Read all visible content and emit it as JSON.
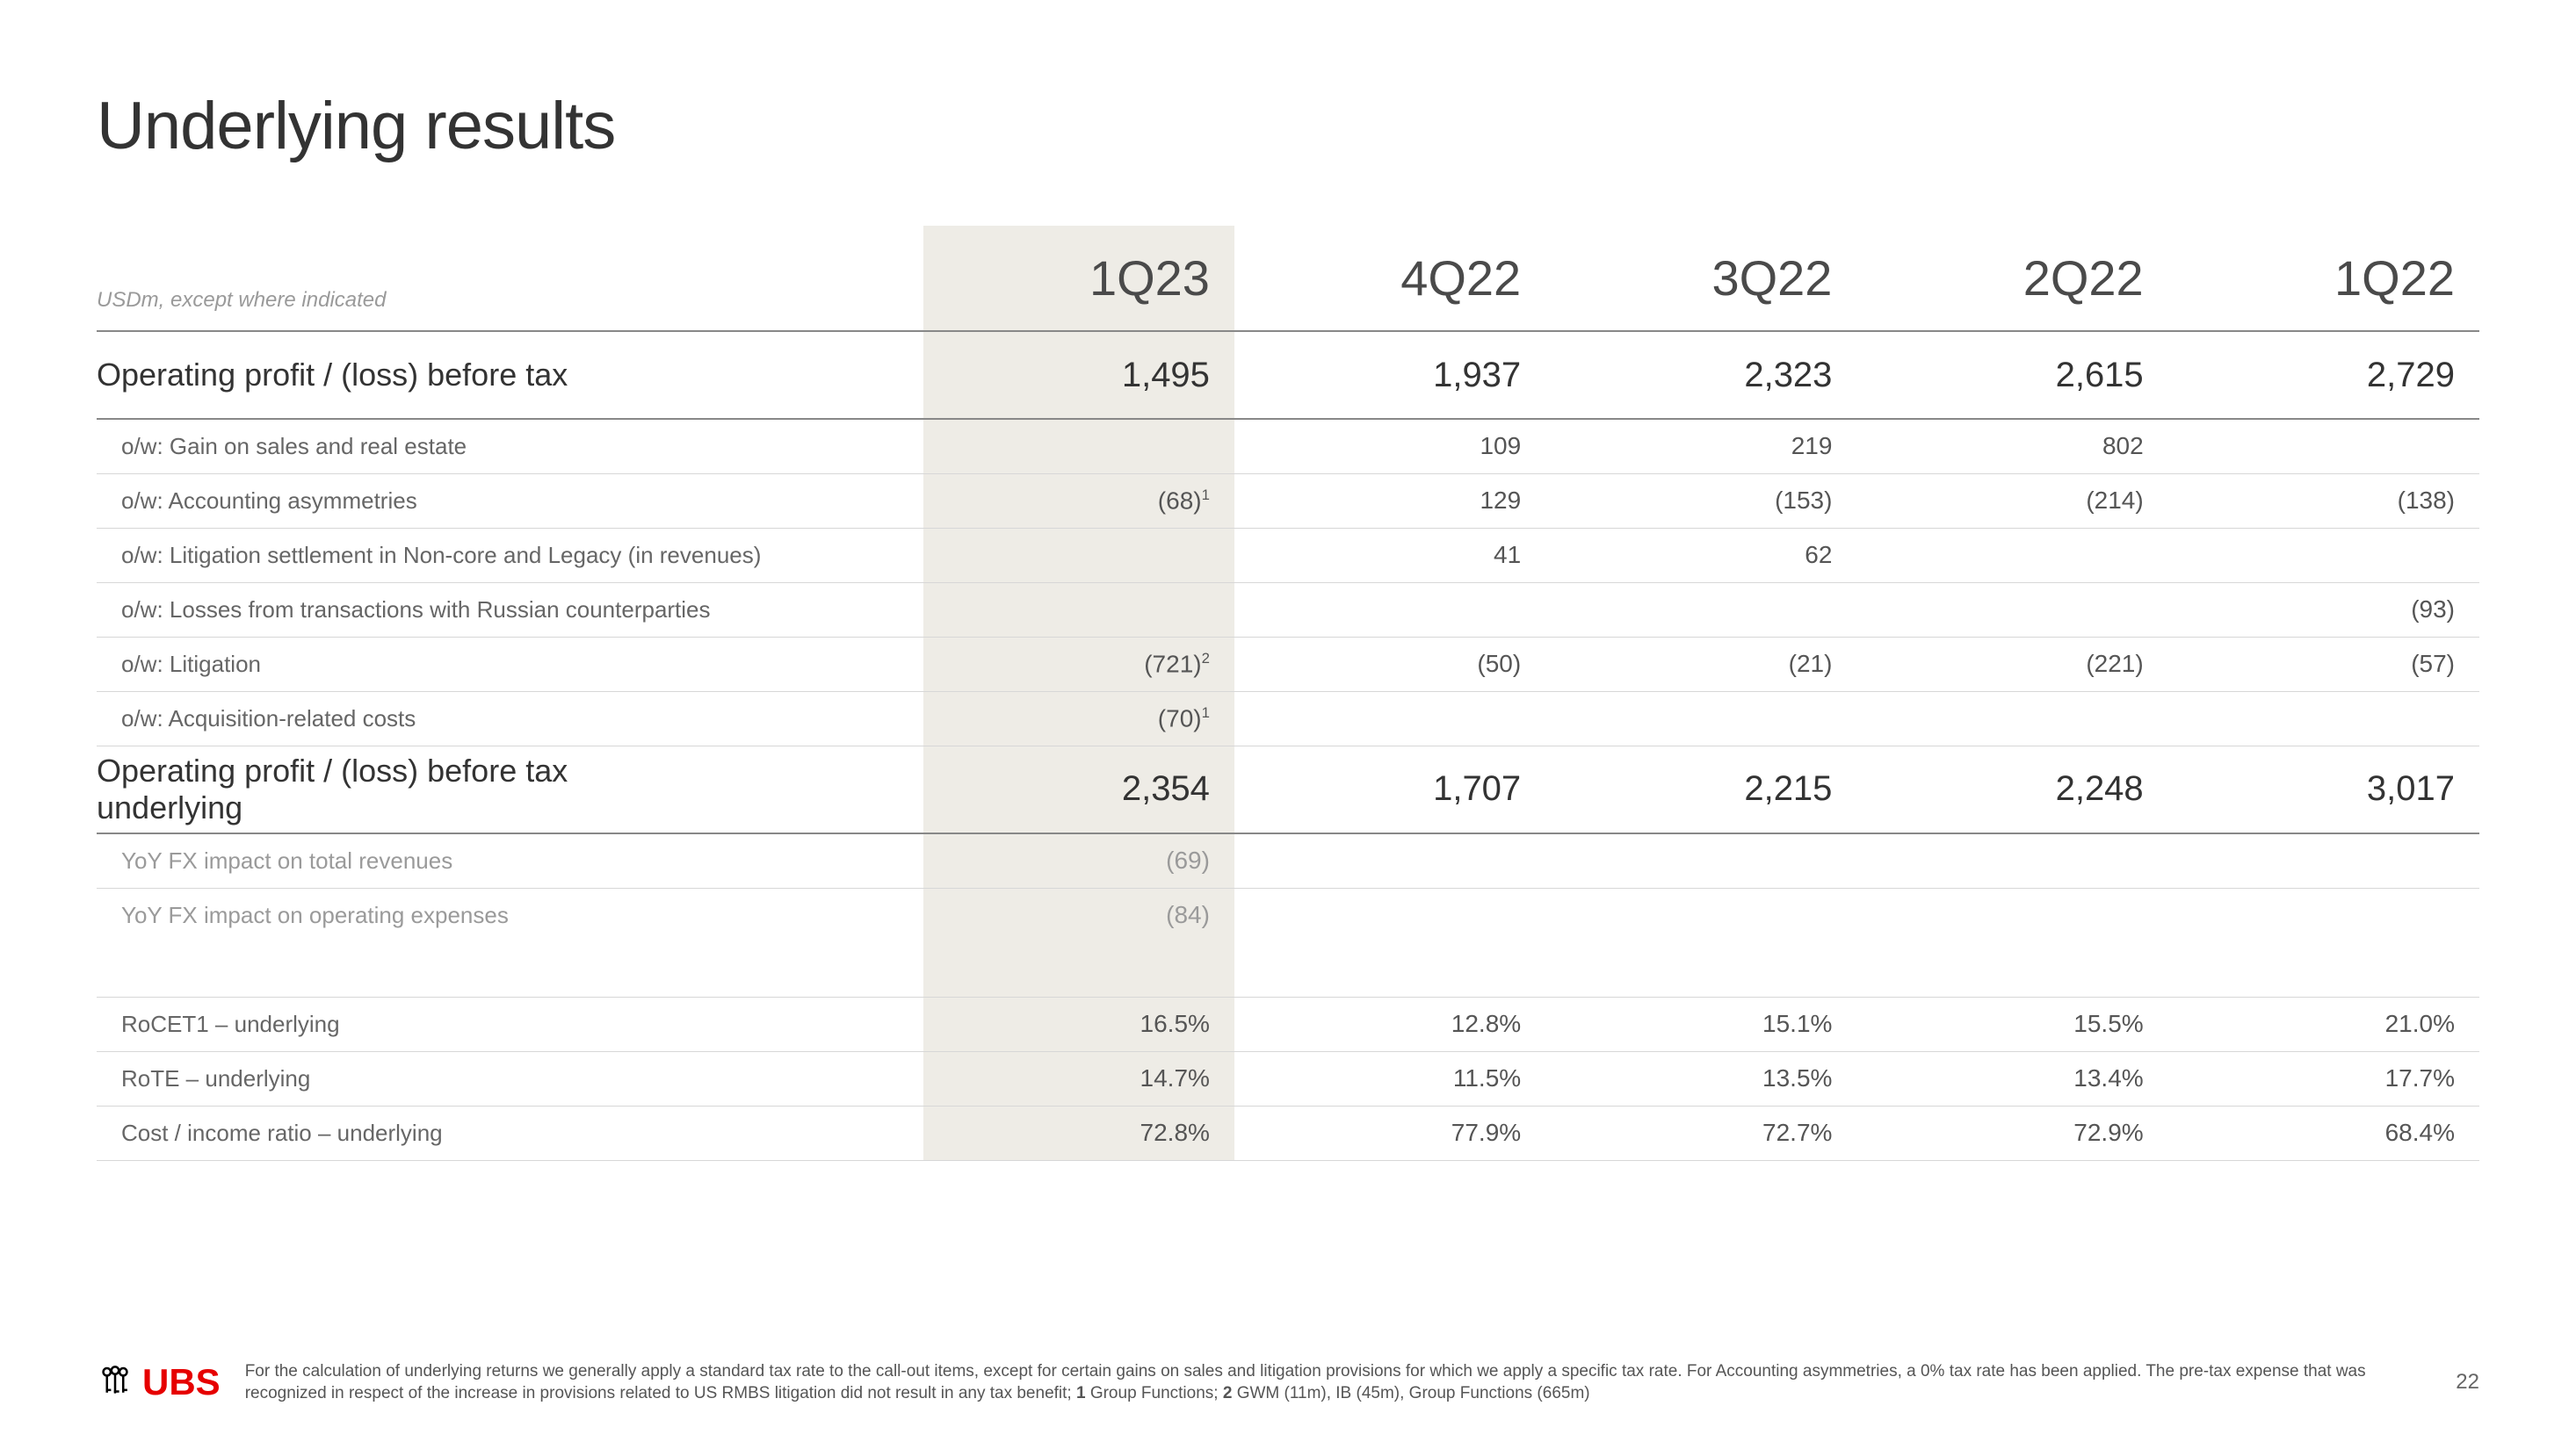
{
  "title": "Underlying results",
  "subtitle": "USDm, except where indicated",
  "columns": [
    "1Q23",
    "4Q22",
    "3Q22",
    "2Q22",
    "1Q22"
  ],
  "highlight_col_index": 0,
  "rows": [
    {
      "type": "major",
      "label": "Operating profit / (loss) before tax",
      "vals": [
        "1,495",
        "1,937",
        "2,323",
        "2,615",
        "2,729"
      ]
    },
    {
      "type": "sub",
      "label": "o/w: Gain on sales and real estate",
      "vals": [
        "",
        "109",
        "219",
        "802",
        ""
      ]
    },
    {
      "type": "sub",
      "label": "o/w: Accounting asymmetries",
      "sup": "1",
      "sup_on": 0,
      "vals": [
        "(68)",
        "129",
        "(153)",
        "(214)",
        "(138)"
      ]
    },
    {
      "type": "sub",
      "label": "o/w: Litigation settlement in Non-core and Legacy (in revenues)",
      "vals": [
        "",
        "41",
        "62",
        "",
        ""
      ]
    },
    {
      "type": "sub",
      "label": "o/w: Losses from transactions with Russian counterparties",
      "vals": [
        "",
        "",
        "",
        "",
        "(93)"
      ]
    },
    {
      "type": "sub",
      "label": "o/w: Litigation",
      "sup": "2",
      "sup_on": 0,
      "vals": [
        "(721)",
        "(50)",
        "(21)",
        "(221)",
        "(57)"
      ]
    },
    {
      "type": "sub",
      "label": "o/w: Acquisition-related costs",
      "sup": "1",
      "sup_on": 0,
      "vals": [
        "(70)",
        "",
        "",
        "",
        ""
      ]
    },
    {
      "type": "major",
      "twoline": true,
      "label1": "Operating profit / (loss) before tax",
      "label2": "underlying",
      "vals": [
        "2,354",
        "1,707",
        "2,215",
        "2,248",
        "3,017"
      ]
    },
    {
      "type": "sub",
      "faded": true,
      "label": "YoY FX impact on total revenues",
      "vals": [
        "(69)",
        "",
        "",
        "",
        ""
      ]
    },
    {
      "type": "sub",
      "faded": true,
      "nobord": true,
      "label": "YoY FX impact on operating expenses",
      "vals": [
        "(84)",
        "",
        "",
        "",
        ""
      ]
    },
    {
      "type": "spacer"
    },
    {
      "type": "sub",
      "topline": true,
      "label": "RoCET1 – underlying",
      "vals": [
        "16.5%",
        "12.8%",
        "15.1%",
        "15.5%",
        "21.0%"
      ]
    },
    {
      "type": "sub",
      "label": "RoTE – underlying",
      "vals": [
        "14.7%",
        "11.5%",
        "13.5%",
        "13.4%",
        "17.7%"
      ]
    },
    {
      "type": "sub",
      "label": "Cost / income ratio – underlying",
      "vals": [
        "72.8%",
        "77.9%",
        "72.7%",
        "72.9%",
        "68.4%"
      ]
    }
  ],
  "footnote_parts": {
    "p1": "For the calculation of underlying returns we generally apply a standard tax rate to the call-out items, except for certain gains on sales and litigation provisions for which we apply a specific tax rate. For Accounting asymmetries, a 0% tax rate has been applied. The pre-tax expense that was recognized in respect of the increase in provisions related to US RMBS litigation did not result in any tax benefit; ",
    "b1": "1",
    "p2": " Group Functions; ",
    "b2": "2",
    "p3": " GWM (11m), IB (45m), Group Functions (665m)"
  },
  "logo_text": "UBS",
  "logo_color": "#e60000",
  "page_number": "22"
}
